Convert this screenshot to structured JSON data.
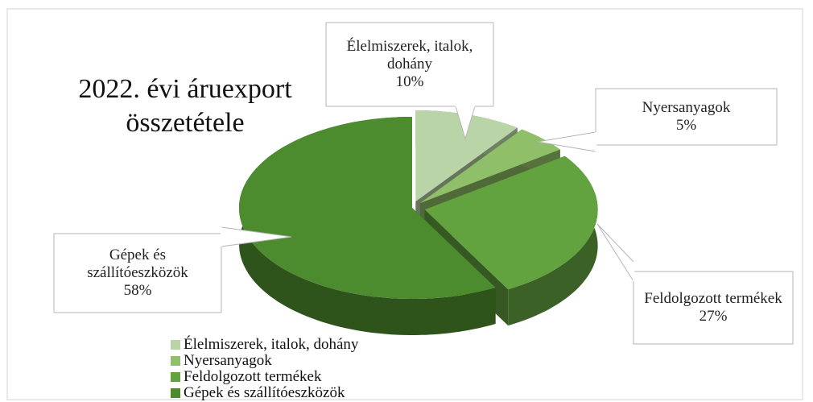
{
  "chart_data": {
    "type": "pie3d",
    "title": "2022. évi áruexport összetétele",
    "categories": [
      "Élelmiszerek, italok, dohány",
      "Nyersanyagok",
      "Feldolgozott termékek",
      "Gépek és szállítóeszközök"
    ],
    "values": [
      10,
      5,
      27,
      58
    ],
    "value_labels": [
      "10%",
      "5%",
      "27%",
      "58%"
    ],
    "colors": [
      "#b9d5a8",
      "#8fbf68",
      "#62a23f",
      "#4d8c2e"
    ],
    "legend": true
  }
}
